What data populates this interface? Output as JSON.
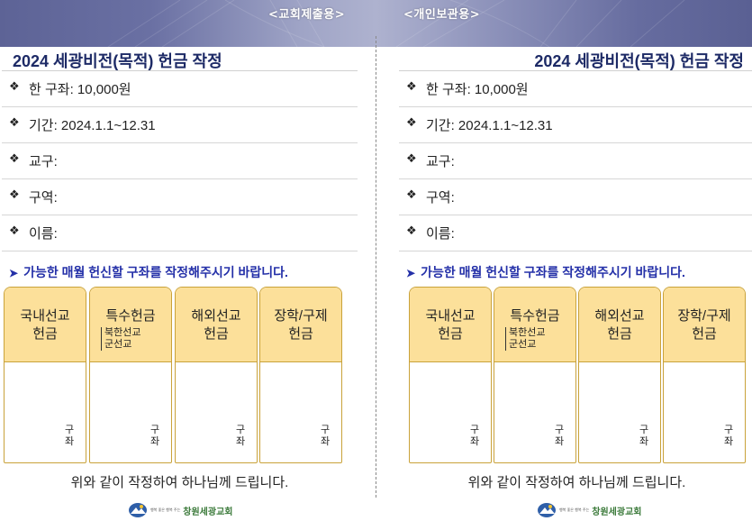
{
  "banner": {
    "left_label": "<교회제출용>",
    "right_label": "<개인보관용>"
  },
  "form": {
    "title": "2024 세광비전(목적) 헌금 작정",
    "bullet_symbol": "❖",
    "fields": [
      {
        "label": "한 구좌: 10,000원"
      },
      {
        "label": "기간: 2024.1.1~12.31"
      },
      {
        "label": "교구:"
      },
      {
        "label": "구역:"
      },
      {
        "label": "이름:"
      }
    ],
    "notice_arrow": "➤",
    "notice": "가능한 매월 헌신할 구좌를 작정해주시기 바랍니다.",
    "boxes": [
      {
        "line1": "국내선교",
        "line2": "헌금",
        "sub1": "",
        "sub2": "",
        "unit1": "구",
        "unit2": "좌"
      },
      {
        "line1": "특수헌금",
        "line2": "",
        "sub1": "북한선교",
        "sub2": "군선교",
        "unit1": "구",
        "unit2": "좌"
      },
      {
        "line1": "해외선교",
        "line2": "헌금",
        "sub1": "",
        "sub2": "",
        "unit1": "구",
        "unit2": "좌"
      },
      {
        "line1": "장학/구제",
        "line2": "헌금",
        "sub1": "",
        "sub2": "",
        "unit1": "구",
        "unit2": "좌"
      }
    ],
    "footer": "위와 같이 작정하여 하나님께 드립니다.",
    "logo": {
      "tagline": "행복 좋은 행복 주는",
      "church_name": "창원세광교회"
    }
  },
  "colors": {
    "title": "#1d2a66",
    "notice": "#2430a8",
    "box_header": "#fce09a",
    "box_border": "#c9a23a",
    "banner": "#6a70a3"
  }
}
